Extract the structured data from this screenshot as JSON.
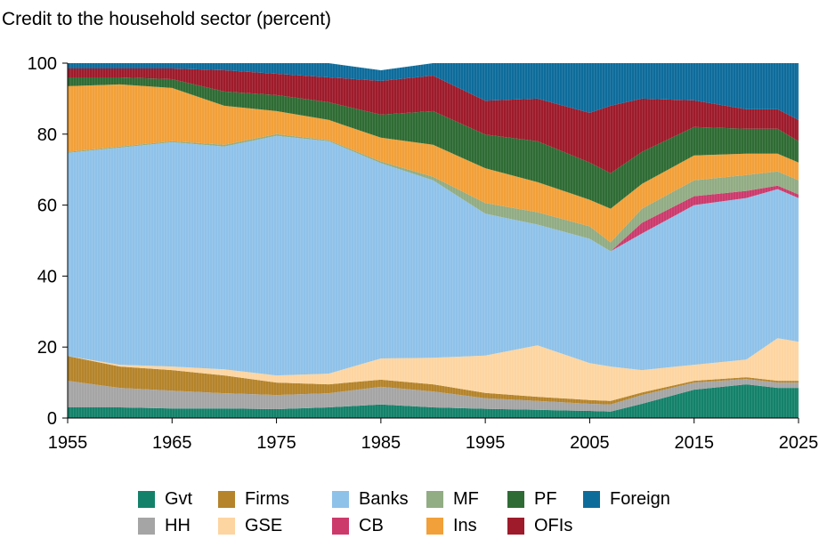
{
  "chart_data": {
    "type": "area",
    "title": "Credit to the household sector (percent)",
    "xlabel": "",
    "ylabel": "",
    "xlim": [
      1955,
      2025
    ],
    "ylim": [
      0,
      100
    ],
    "x_ticks": [
      "1955",
      "1965",
      "1975",
      "1985",
      "1995",
      "2005",
      "2015",
      "2025"
    ],
    "y_ticks": [
      "0",
      "20",
      "40",
      "60",
      "80",
      "100"
    ],
    "grid": false,
    "stacked": true,
    "legend_position": "bottom",
    "x": [
      1955,
      1960,
      1965,
      1970,
      1975,
      1980,
      1985,
      1990,
      1995,
      2000,
      2005,
      2007,
      2010,
      2015,
      2020,
      2023,
      2025
    ],
    "series": [
      {
        "name": "Gvt",
        "color": "#14826a",
        "values": [
          3,
          3,
          2.7,
          2.7,
          2.5,
          3,
          3.8,
          3,
          2.6,
          2.3,
          2,
          1.8,
          4,
          8,
          9.5,
          8.5,
          8.5
        ]
      },
      {
        "name": "HH",
        "color": "#a5a5a5",
        "values": [
          7.5,
          5.5,
          5,
          4.3,
          4,
          4,
          5,
          4.5,
          3,
          2.5,
          2,
          2,
          2.5,
          2,
          1.5,
          1.5,
          1.5
        ]
      },
      {
        "name": "Firms",
        "color": "#b5842b",
        "values": [
          7,
          6,
          5.8,
          5,
          3.5,
          2.5,
          2,
          2,
          1.5,
          1.2,
          1.1,
          1,
          0.7,
          0.5,
          0.5,
          0.5,
          0.5
        ]
      },
      {
        "name": "GSE",
        "color": "#fdd5a1",
        "values": [
          0,
          0.5,
          1,
          1.7,
          2,
          3,
          6,
          7.5,
          10.5,
          14.5,
          10.4,
          9.7,
          6.3,
          4.5,
          5,
          12,
          11
        ]
      },
      {
        "name": "Banks",
        "color": "#8fc2e9",
        "values": [
          57.2,
          61.2,
          63.2,
          62.8,
          67.5,
          65.5,
          55,
          50,
          40,
          34,
          35,
          32.5,
          38.5,
          45,
          45.5,
          42,
          40.5
        ]
      },
      {
        "name": "CB",
        "color": "#cc3a6c",
        "values": [
          0,
          0,
          0,
          0,
          0,
          0,
          0,
          0,
          0,
          0,
          0,
          0,
          3,
          2.5,
          2,
          1,
          1
        ]
      },
      {
        "name": "MF",
        "color": "#92ac84",
        "values": [
          0.3,
          0.3,
          0.3,
          0.5,
          0.5,
          0.3,
          0.5,
          1,
          3,
          3.5,
          3.5,
          2.5,
          4,
          4.5,
          4.5,
          4,
          4
        ]
      },
      {
        "name": "Ins",
        "color": "#f2a039",
        "values": [
          18.5,
          17.5,
          15,
          11,
          6.5,
          5.7,
          6.7,
          9,
          9.8,
          8.5,
          7.5,
          9.5,
          7,
          7,
          6,
          5,
          5
        ]
      },
      {
        "name": "PF",
        "color": "#2f6c35",
        "values": [
          2.5,
          2,
          2.5,
          4,
          4.5,
          5,
          6.5,
          9.5,
          9.5,
          11.5,
          10.5,
          10,
          9,
          8,
          7,
          7,
          6
        ]
      },
      {
        "name": "OFIs",
        "color": "#9e1b2b",
        "values": [
          2.5,
          2.5,
          3,
          6,
          6,
          7,
          9.5,
          10,
          9.5,
          12,
          14,
          19,
          15,
          7.5,
          5.5,
          5.5,
          6
        ]
      },
      {
        "name": "Foreign",
        "color": "#0e6c9b",
        "values": [
          1.5,
          1.5,
          1.5,
          2,
          3,
          4,
          3,
          3.5,
          10.6,
          10,
          14,
          12,
          10,
          10.5,
          13,
          13,
          16
        ]
      }
    ]
  }
}
